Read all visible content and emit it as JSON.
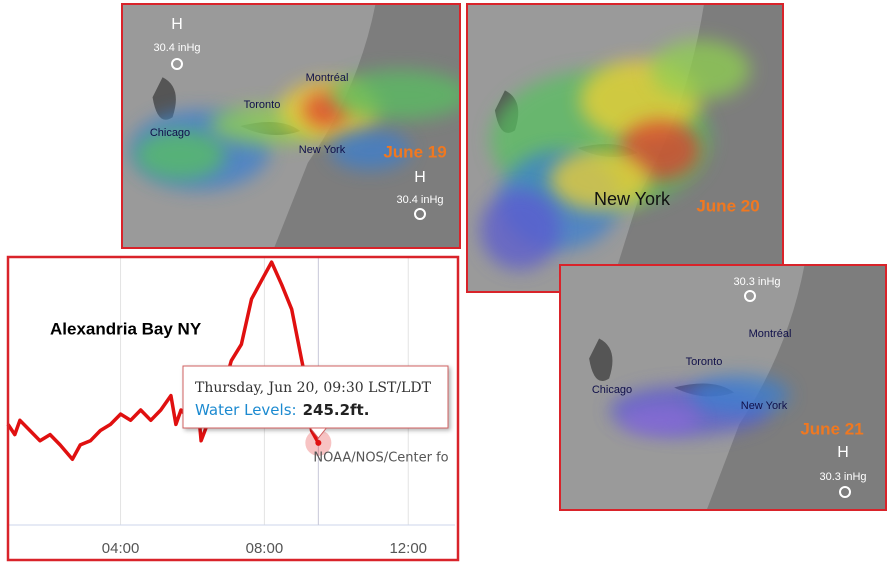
{
  "maps": [
    {
      "labels": [
        "H",
        "30.4 inHg",
        "Montréal",
        "Toronto",
        "Chicago",
        "New York",
        "H",
        "30.4 inHg"
      ],
      "date": "June 19"
    },
    {
      "labels": [
        "New York"
      ],
      "date": "June 20"
    },
    {
      "labels": [
        "30.3 inHg",
        "Montréal",
        "Toronto",
        "Chicago",
        "New York",
        "H",
        "30.3 inHg"
      ],
      "date": "June 21"
    }
  ],
  "chart_data": {
    "type": "line",
    "title": "Alexandria Bay NY",
    "x": [
      0.87,
      1.06,
      1.2,
      1.48,
      1.76,
      2.04,
      2.32,
      2.66,
      2.88,
      3.16,
      3.44,
      3.72,
      4.0,
      4.28,
      4.56,
      4.84,
      5.12,
      5.4,
      5.54,
      5.68,
      5.96,
      6.1,
      6.24,
      6.52,
      6.8,
      7.08,
      7.36,
      7.64,
      7.92,
      8.2,
      8.48,
      8.76,
      9.04,
      9.18,
      9.31,
      9.5
    ],
    "series": [
      {
        "name": "Water Levels:",
        "color": "#e01010",
        "values": [
          245.29,
          245.24,
          245.31,
          245.26,
          245.21,
          245.24,
          245.19,
          245.12,
          245.19,
          245.21,
          245.26,
          245.29,
          245.34,
          245.31,
          245.36,
          245.31,
          245.36,
          245.43,
          245.29,
          245.36,
          245.31,
          245.48,
          245.21,
          245.34,
          245.43,
          245.6,
          245.68,
          245.9,
          245.99,
          246.08,
          245.97,
          245.85,
          245.6,
          245.48,
          245.26,
          245.2
        ],
        "value_labels": [
          null,
          null,
          null,
          null,
          null,
          null,
          null,
          null,
          null,
          null,
          null,
          null,
          null,
          null,
          null,
          null,
          null,
          null,
          null,
          null,
          null,
          null,
          null,
          null,
          null,
          null,
          null,
          null,
          null,
          null,
          null,
          null,
          null,
          null,
          null,
          "245.2ft."
        ]
      }
    ],
    "tooltip": "Thursday, Jun 20, 09:30 LST/LDT",
    "credit": "NOAA/NOS/Center fo",
    "xlim": [
      0.87,
      13.3
    ],
    "xticks": [
      {
        "value": 4,
        "label": "04:00"
      },
      {
        "value": 8,
        "label": "08:00"
      },
      {
        "value": 12,
        "label": "12:00"
      }
    ],
    "ylim": [
      244.8,
      246.1
    ],
    "grid": true
  }
}
